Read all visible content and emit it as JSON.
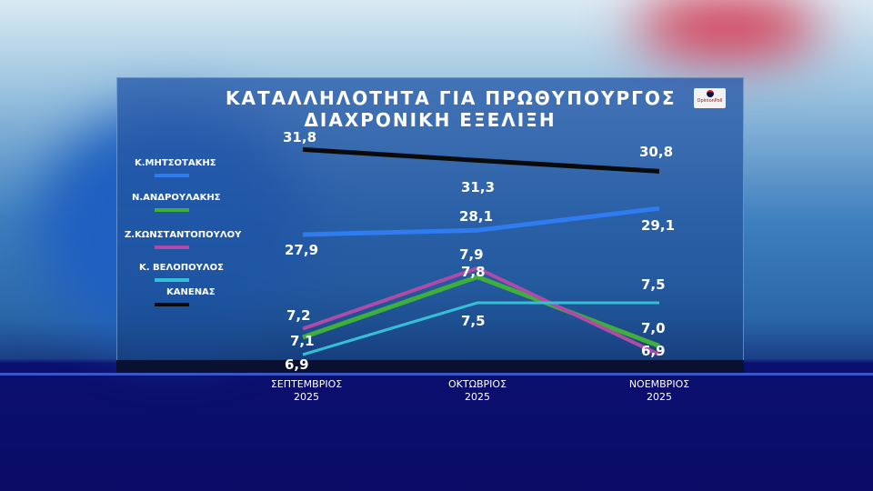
{
  "chart_data": {
    "type": "line",
    "title": "ΚΑΤΑΛΛΗΛΟΤΗΤΑ ΓΙΑ ΠΡΩΘΥΠΟΥΡΓΟΣ",
    "subtitle": "ΔΙΑΧΡΟΝΙΚΗ ΕΞΕΛΙΞΗ",
    "categories": [
      [
        "ΣΕΠΤΕΜΒΡΙΟΣ",
        "2025"
      ],
      [
        "ΟΚΤΩΒΡΙΟΣ",
        "2025"
      ],
      [
        "ΝΟΕΜΒΡΙΟΣ",
        "2025"
      ]
    ],
    "legend_placement": "left",
    "y_axis": "broken (not shown)",
    "grid": false,
    "series": [
      {
        "name": "Κ.ΜΗΤΣΟΤΑΚΗΣ",
        "color": "#2f7bf0",
        "values": [
          27.9,
          28.1,
          29.1
        ],
        "labels": [
          "27,9",
          "28,1",
          "29,1"
        ]
      },
      {
        "name": "Ν.ΑΝΔΡΟΥΛΑΚΗΣ",
        "color": "#3fae3a",
        "values": [
          7.1,
          7.8,
          7.0
        ],
        "labels": [
          "7,1",
          "7,8",
          "7,0"
        ]
      },
      {
        "name": "Ζ.ΚΩΝΣΤΑΝΤΟΠΟΥΛΟΥ",
        "color": "#b04aa8",
        "values": [
          7.2,
          7.9,
          6.9
        ],
        "labels": [
          "7,2",
          "7,9",
          "6,9"
        ]
      },
      {
        "name": "Κ.  ΒΕΛΟΠΟΥΛΟΣ",
        "color": "#35c0d8",
        "values": [
          6.9,
          7.5,
          7.5
        ],
        "labels": [
          "6,9",
          "7,5",
          "7,5"
        ]
      },
      {
        "name": "ΚΑΝΕΝΑΣ",
        "color": "#0a0a0a",
        "values": [
          31.8,
          31.3,
          30.8
        ],
        "labels": [
          "31,8",
          "31,3",
          "30,8"
        ]
      }
    ]
  },
  "logo": {
    "text": "OpinionPoll"
  }
}
